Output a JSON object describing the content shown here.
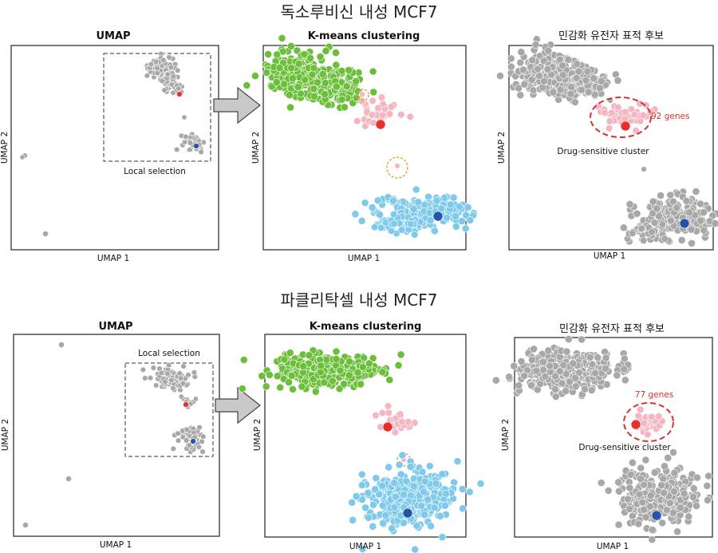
{
  "rows": [
    {
      "title": "독소루비신 내성 MCF7",
      "panels": [
        {
          "title": "UMAP",
          "xlabel": "UMAP 1",
          "ylabel": "UMAP 2",
          "selection_label": "Local selection"
        },
        {
          "title": "K-means clustering",
          "xlabel": "UMAP 1",
          "ylabel": "UMAP 2"
        },
        {
          "title": "민감화 유전자 표적 후보",
          "xlabel": "UMAP 1",
          "ylabel": "UMAP 2",
          "genes_label": "92 genes",
          "cluster_label": "Drug-sensitive cluster"
        }
      ]
    },
    {
      "title": "파클리탁셀 내성 MCF7",
      "panels": [
        {
          "title": "UMAP",
          "xlabel": "UMAP 1",
          "ylabel": "UMAP 2",
          "selection_label": "Local selection"
        },
        {
          "title": "K-means clustering",
          "xlabel": "UMAP 1",
          "ylabel": "UMAP 2"
        },
        {
          "title": "민감화 유전자 표적 후보",
          "xlabel": "UMAP 1",
          "ylabel": "UMAP 2",
          "genes_label": "77 genes",
          "cluster_label": "Drug-sensitive cluster"
        }
      ]
    }
  ],
  "colors": {
    "green": "#6cbf3a",
    "pink": "#f4b6c2",
    "blue_light": "#7fcaeb",
    "grey": "#a8a8a8",
    "red": "#e8302a",
    "blue_dark": "#2455a4",
    "orange_dash": "#e8a030",
    "red_dash": "#d9312b"
  }
}
